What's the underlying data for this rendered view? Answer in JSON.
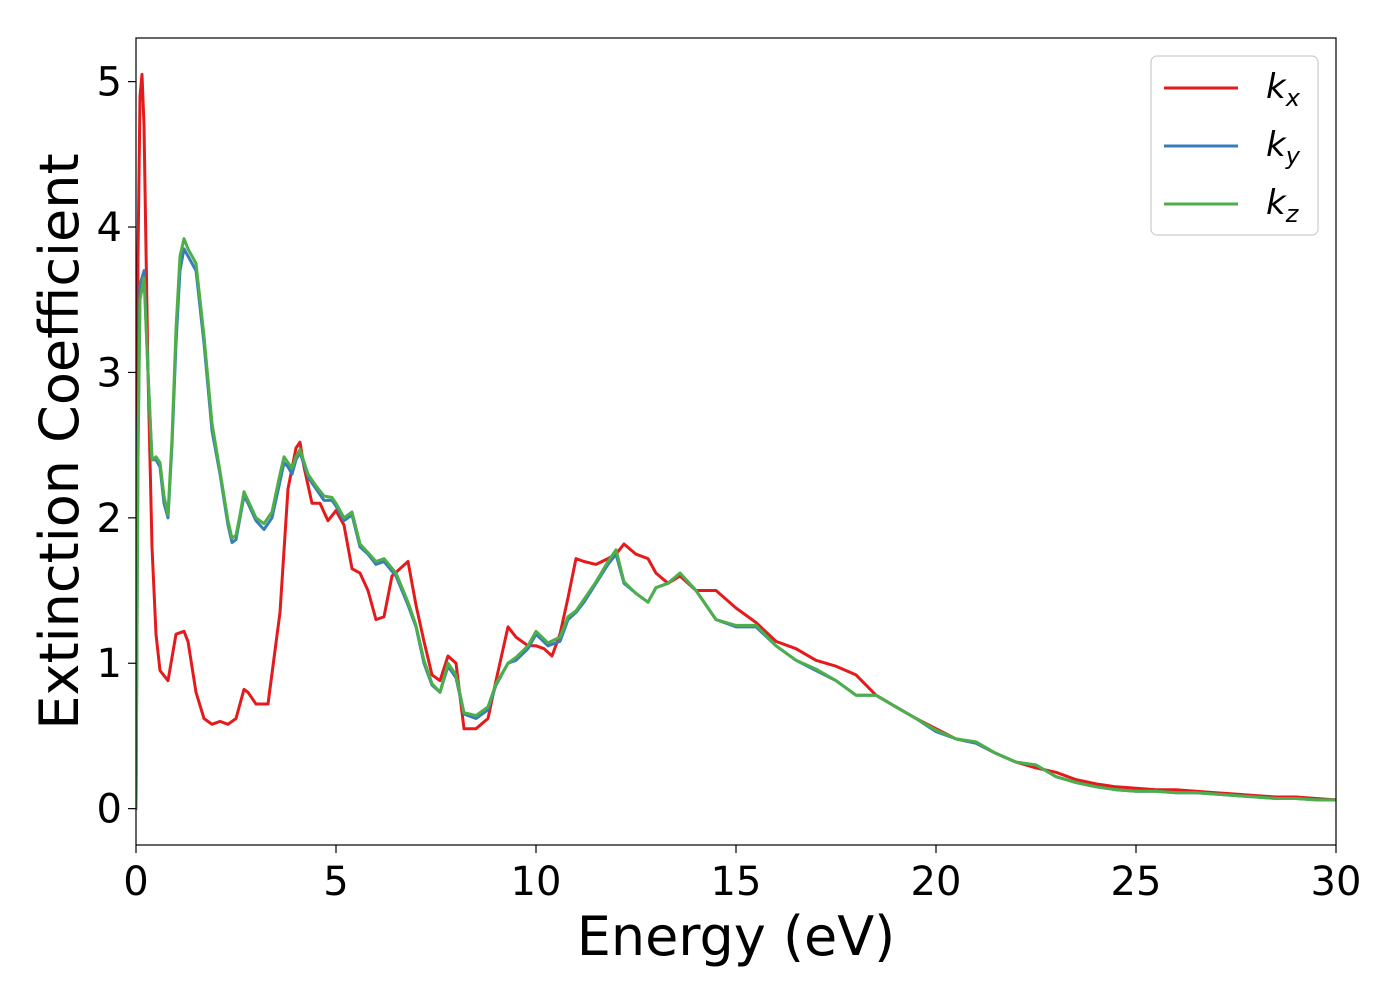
{
  "chart_data": {
    "type": "line",
    "xlabel": "Energy (eV)",
    "ylabel": "Extinction Coefficient",
    "xlim": [
      0,
      30
    ],
    "ylim": [
      -0.25,
      5.3
    ],
    "xticks": [
      0,
      5,
      10,
      15,
      20,
      25,
      30
    ],
    "yticks": [
      0,
      1,
      2,
      3,
      4,
      5
    ],
    "grid": false,
    "legend_position": "top-right",
    "series": [
      {
        "name": "k",
        "subscript": "x",
        "color": "#e41a1c",
        "x": [
          0,
          0.05,
          0.1,
          0.15,
          0.2,
          0.3,
          0.4,
          0.5,
          0.6,
          0.8,
          1.0,
          1.2,
          1.3,
          1.5,
          1.7,
          1.9,
          2.1,
          2.3,
          2.5,
          2.7,
          2.8,
          3.0,
          3.3,
          3.6,
          3.8,
          4.0,
          4.1,
          4.2,
          4.4,
          4.6,
          4.8,
          5.0,
          5.2,
          5.4,
          5.6,
          5.8,
          6.0,
          6.2,
          6.4,
          6.6,
          6.8,
          7.0,
          7.2,
          7.4,
          7.6,
          7.8,
          8.0,
          8.2,
          8.5,
          8.8,
          9.0,
          9.3,
          9.5,
          9.8,
          10.0,
          10.2,
          10.4,
          10.6,
          10.8,
          11.0,
          11.2,
          11.5,
          11.8,
          12.0,
          12.2,
          12.5,
          12.8,
          13.0,
          13.3,
          13.6,
          14.0,
          14.5,
          15.0,
          15.5,
          16.0,
          16.5,
          17.0,
          17.5,
          18.0,
          18.5,
          19.0,
          19.5,
          20.0,
          20.5,
          21.0,
          21.5,
          22.0,
          22.5,
          23.0,
          23.5,
          24.0,
          24.5,
          25.0,
          25.5,
          26.0,
          26.5,
          27.0,
          27.5,
          28.0,
          28.5,
          29.0,
          29.5,
          30.0
        ],
        "y": [
          0,
          3.8,
          4.9,
          5.05,
          4.7,
          3.0,
          1.8,
          1.2,
          0.95,
          0.88,
          1.2,
          1.22,
          1.15,
          0.8,
          0.62,
          0.58,
          0.6,
          0.58,
          0.62,
          0.82,
          0.8,
          0.72,
          0.72,
          1.35,
          2.2,
          2.48,
          2.52,
          2.35,
          2.1,
          2.1,
          1.98,
          2.05,
          1.95,
          1.65,
          1.62,
          1.5,
          1.3,
          1.32,
          1.6,
          1.65,
          1.7,
          1.4,
          1.15,
          0.92,
          0.88,
          1.05,
          1.0,
          0.55,
          0.55,
          0.62,
          0.88,
          1.25,
          1.18,
          1.12,
          1.12,
          1.1,
          1.05,
          1.2,
          1.45,
          1.72,
          1.7,
          1.68,
          1.72,
          1.75,
          1.82,
          1.75,
          1.72,
          1.62,
          1.55,
          1.6,
          1.5,
          1.5,
          1.38,
          1.28,
          1.15,
          1.1,
          1.02,
          0.98,
          0.92,
          0.78,
          0.7,
          0.62,
          0.55,
          0.48,
          0.45,
          0.38,
          0.32,
          0.28,
          0.25,
          0.2,
          0.17,
          0.15,
          0.14,
          0.13,
          0.13,
          0.12,
          0.11,
          0.1,
          0.09,
          0.08,
          0.08,
          0.07,
          0.06
        ]
      },
      {
        "name": "k",
        "subscript": "y",
        "color": "#377eb8",
        "x": [
          0,
          0.05,
          0.1,
          0.2,
          0.3,
          0.4,
          0.5,
          0.6,
          0.7,
          0.8,
          0.9,
          1.0,
          1.1,
          1.2,
          1.3,
          1.5,
          1.7,
          1.9,
          2.1,
          2.3,
          2.4,
          2.5,
          2.6,
          2.7,
          2.8,
          3.0,
          3.2,
          3.4,
          3.6,
          3.7,
          3.8,
          3.9,
          4.0,
          4.1,
          4.3,
          4.5,
          4.7,
          4.9,
          5.0,
          5.2,
          5.4,
          5.6,
          5.8,
          6.0,
          6.2,
          6.5,
          6.8,
          7.0,
          7.2,
          7.4,
          7.6,
          7.8,
          8.0,
          8.2,
          8.5,
          8.8,
          9.0,
          9.3,
          9.5,
          9.8,
          10.0,
          10.3,
          10.6,
          10.8,
          11.0,
          11.2,
          11.5,
          11.8,
          12.0,
          12.2,
          12.5,
          12.8,
          13.0,
          13.3,
          13.6,
          14.0,
          14.5,
          15.0,
          15.5,
          16.0,
          16.5,
          17.0,
          17.5,
          18.0,
          18.5,
          19.0,
          19.5,
          20.0,
          20.5,
          21.0,
          21.5,
          22.0,
          22.5,
          23.0,
          23.5,
          24.0,
          24.5,
          25.0,
          25.5,
          26.0,
          26.5,
          27.0,
          27.5,
          28.0,
          28.5,
          29.0,
          29.5,
          30.0
        ],
        "y": [
          0,
          2.5,
          3.6,
          3.7,
          3.0,
          2.4,
          2.4,
          2.35,
          2.1,
          2.0,
          2.5,
          3.2,
          3.7,
          3.85,
          3.8,
          3.7,
          3.2,
          2.6,
          2.3,
          1.95,
          1.83,
          1.85,
          2.0,
          2.15,
          2.1,
          1.98,
          1.92,
          2.0,
          2.25,
          2.38,
          2.35,
          2.3,
          2.4,
          2.45,
          2.28,
          2.2,
          2.12,
          2.12,
          2.08,
          1.98,
          2.02,
          1.8,
          1.75,
          1.68,
          1.7,
          1.6,
          1.4,
          1.25,
          1.0,
          0.85,
          0.8,
          0.98,
          0.9,
          0.65,
          0.62,
          0.68,
          0.85,
          1.0,
          1.02,
          1.1,
          1.2,
          1.12,
          1.15,
          1.3,
          1.35,
          1.42,
          1.55,
          1.68,
          1.75,
          1.55,
          1.48,
          1.42,
          1.52,
          1.55,
          1.62,
          1.5,
          1.3,
          1.25,
          1.25,
          1.12,
          1.02,
          0.95,
          0.88,
          0.78,
          0.78,
          0.7,
          0.62,
          0.53,
          0.48,
          0.45,
          0.38,
          0.32,
          0.3,
          0.22,
          0.18,
          0.15,
          0.13,
          0.12,
          0.12,
          0.11,
          0.11,
          0.1,
          0.09,
          0.08,
          0.07,
          0.07,
          0.06,
          0.06
        ]
      },
      {
        "name": "k",
        "subscript": "z",
        "color": "#4daf4a",
        "x": [
          0,
          0.05,
          0.1,
          0.2,
          0.3,
          0.4,
          0.5,
          0.6,
          0.7,
          0.8,
          0.9,
          1.0,
          1.1,
          1.2,
          1.3,
          1.5,
          1.7,
          1.9,
          2.1,
          2.3,
          2.4,
          2.5,
          2.6,
          2.7,
          2.8,
          3.0,
          3.2,
          3.4,
          3.6,
          3.7,
          3.8,
          3.9,
          4.0,
          4.1,
          4.3,
          4.5,
          4.7,
          4.9,
          5.0,
          5.2,
          5.4,
          5.6,
          5.8,
          6.0,
          6.2,
          6.5,
          6.8,
          7.0,
          7.2,
          7.4,
          7.6,
          7.8,
          8.0,
          8.2,
          8.5,
          8.8,
          9.0,
          9.3,
          9.5,
          9.8,
          10.0,
          10.3,
          10.6,
          10.8,
          11.0,
          11.2,
          11.5,
          11.8,
          12.0,
          12.2,
          12.5,
          12.8,
          13.0,
          13.3,
          13.6,
          14.0,
          14.5,
          15.0,
          15.5,
          16.0,
          16.5,
          17.0,
          17.5,
          18.0,
          18.5,
          19.0,
          19.5,
          20.0,
          20.5,
          21.0,
          21.5,
          22.0,
          22.5,
          23.0,
          23.5,
          24.0,
          24.5,
          25.0,
          25.5,
          26.0,
          26.5,
          27.0,
          27.5,
          28.0,
          28.5,
          29.0,
          29.5,
          30.0
        ],
        "y": [
          0,
          2.4,
          3.5,
          3.65,
          3.0,
          2.4,
          2.42,
          2.38,
          2.15,
          2.02,
          2.55,
          3.3,
          3.8,
          3.92,
          3.85,
          3.75,
          3.25,
          2.65,
          2.32,
          1.98,
          1.86,
          1.88,
          2.02,
          2.18,
          2.12,
          2.0,
          1.96,
          2.04,
          2.3,
          2.42,
          2.38,
          2.34,
          2.42,
          2.47,
          2.3,
          2.22,
          2.15,
          2.14,
          2.1,
          2.0,
          2.04,
          1.82,
          1.76,
          1.7,
          1.72,
          1.62,
          1.42,
          1.26,
          1.02,
          0.86,
          0.8,
          1.0,
          0.92,
          0.66,
          0.64,
          0.7,
          0.86,
          1.0,
          1.04,
          1.12,
          1.22,
          1.14,
          1.18,
          1.32,
          1.36,
          1.44,
          1.56,
          1.7,
          1.78,
          1.56,
          1.48,
          1.42,
          1.52,
          1.55,
          1.62,
          1.5,
          1.3,
          1.26,
          1.26,
          1.12,
          1.02,
          0.96,
          0.88,
          0.78,
          0.78,
          0.7,
          0.62,
          0.54,
          0.48,
          0.46,
          0.38,
          0.32,
          0.3,
          0.22,
          0.18,
          0.15,
          0.13,
          0.12,
          0.12,
          0.11,
          0.11,
          0.1,
          0.09,
          0.08,
          0.07,
          0.07,
          0.06,
          0.06
        ]
      }
    ]
  }
}
